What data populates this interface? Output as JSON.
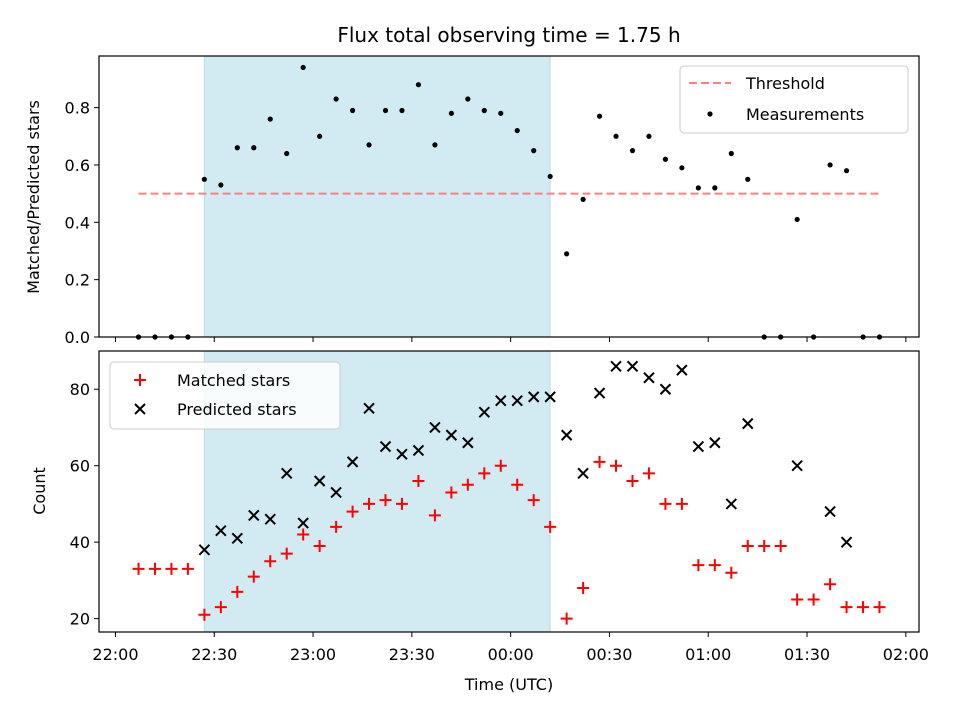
{
  "chart_data": {
    "type": "scatter",
    "title": "Flux total observing time = 1.75 h",
    "xlabel": "Time (UTC)",
    "x_ticks": [
      "22:00",
      "22:30",
      "23:00",
      "23:30",
      "00:00",
      "00:30",
      "01:00",
      "01:30",
      "02:00"
    ],
    "xlim": [
      "21:55",
      "02:04"
    ],
    "shaded_interval": [
      "22:27",
      "00:12"
    ],
    "shade_color": "#add8e6",
    "x_times": [
      "22:07",
      "22:12",
      "22:17",
      "22:22",
      "22:27",
      "22:32",
      "22:37",
      "22:42",
      "22:47",
      "22:52",
      "22:57",
      "23:02",
      "23:07",
      "23:12",
      "23:17",
      "23:22",
      "23:27",
      "23:32",
      "23:37",
      "23:42",
      "23:47",
      "23:52",
      "23:57",
      "00:02",
      "00:07",
      "00:12",
      "00:17",
      "00:22",
      "00:27",
      "00:32",
      "00:37",
      "00:42",
      "00:47",
      "00:52",
      "00:57",
      "01:02",
      "01:07",
      "01:12",
      "01:17",
      "01:22",
      "01:27",
      "01:32",
      "01:37",
      "01:42",
      "01:47",
      "01:52"
    ],
    "panels": [
      {
        "ylabel": "Matched/Predicted stars",
        "ylim": [
          0,
          0.98
        ],
        "y_ticks": [
          "0.0",
          "0.2",
          "0.4",
          "0.6",
          "0.8"
        ],
        "legend_position": "top-right",
        "series": [
          {
            "name": "Threshold",
            "kind": "dashed-line",
            "color": "#ff7f7f",
            "x": [
              "22:07",
              "01:52"
            ],
            "values": [
              0.5,
              0.5
            ]
          },
          {
            "name": "Measurements",
            "kind": "dot",
            "color": "#000000",
            "values": [
              0.0,
              0.0,
              0.0,
              0.0,
              0.55,
              0.53,
              0.66,
              0.66,
              0.76,
              0.64,
              0.94,
              0.7,
              0.83,
              0.79,
              0.67,
              0.79,
              0.79,
              0.88,
              0.67,
              0.78,
              0.83,
              0.79,
              0.78,
              0.72,
              0.65,
              0.56,
              0.29,
              0.48,
              0.77,
              0.7,
              0.65,
              0.7,
              0.62,
              0.59,
              0.52,
              0.52,
              0.64,
              0.55,
              0.0,
              0.0,
              0.41,
              0.0,
              0.6,
              0.58,
              0.0,
              0.0
            ]
          }
        ]
      },
      {
        "ylabel": "Count",
        "ylim": [
          16.5,
          90
        ],
        "y_ticks": [
          "20",
          "40",
          "60",
          "80"
        ],
        "legend_position": "top-left",
        "series": [
          {
            "name": "Matched stars",
            "kind": "plus",
            "color": "#ff0000",
            "values": [
              33,
              33,
              33,
              33,
              21,
              23,
              27,
              31,
              35,
              37,
              42,
              39,
              44,
              48,
              50,
              51,
              50,
              56,
              47,
              53,
              55,
              58,
              60,
              55,
              51,
              44,
              20,
              28,
              61,
              60,
              56,
              58,
              50,
              50,
              34,
              34,
              32,
              39,
              39,
              39,
              25,
              25,
              29,
              23,
              23,
              23
            ]
          },
          {
            "name": "Predicted stars",
            "kind": "cross",
            "color": "#000000",
            "values": [
              null,
              null,
              null,
              null,
              38,
              43,
              41,
              47,
              46,
              58,
              45,
              56,
              53,
              61,
              75,
              65,
              63,
              64,
              70,
              68,
              66,
              74,
              77,
              77,
              78,
              78,
              68,
              58,
              79,
              86,
              86,
              83,
              80,
              85,
              65,
              66,
              50,
              71,
              null,
              null,
              60,
              null,
              48,
              40,
              null,
              null
            ]
          }
        ]
      }
    ]
  }
}
